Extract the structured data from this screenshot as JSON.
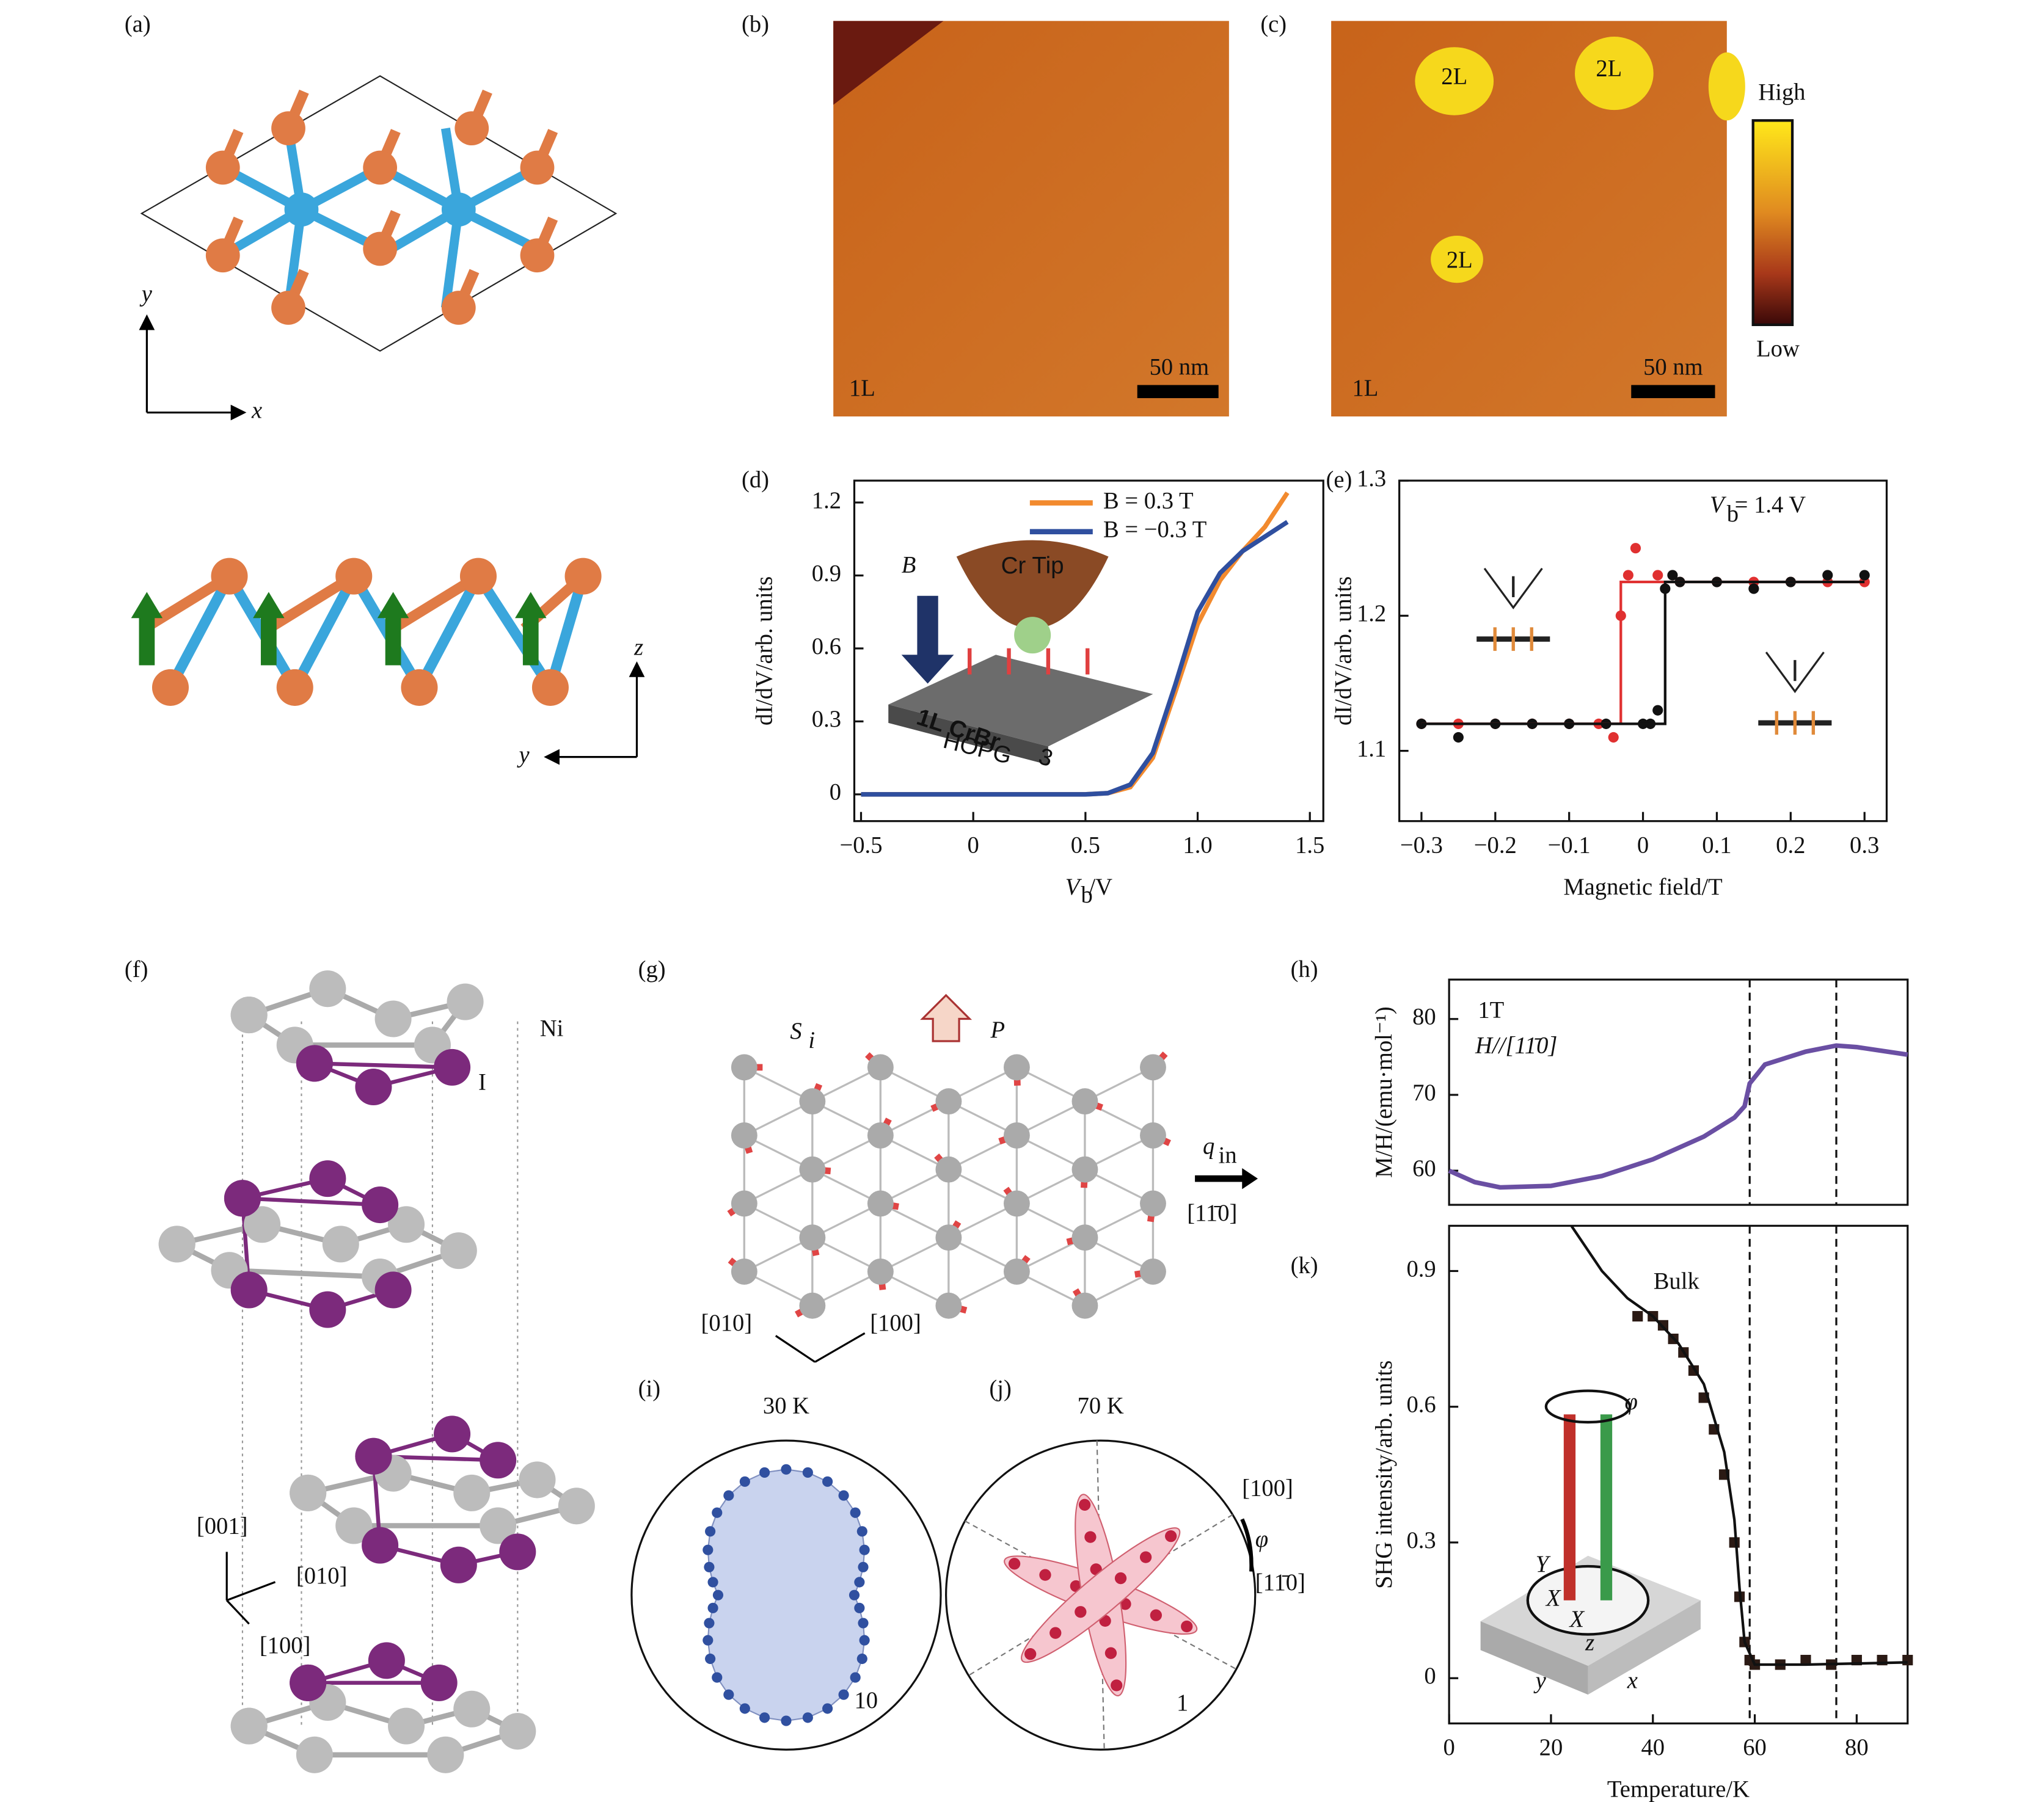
{
  "panel_labels": [
    "(a)",
    "(b)",
    "(c)",
    "(d)",
    "(e)",
    "(f)",
    "(g)",
    "(h)",
    "(i)",
    "(j)",
    "(k)"
  ],
  "panel_a": {
    "axes_top": [
      "y",
      "x"
    ],
    "axes_bottom": [
      "z",
      "y"
    ]
  },
  "panel_b": {
    "layer": "1L",
    "scale": "50 nm"
  },
  "panel_c": {
    "islands": [
      "2L",
      "2L",
      "2L"
    ],
    "layer": "1L",
    "scale": "50 nm",
    "colorbar": [
      "High",
      "Low"
    ]
  },
  "panel_f": {
    "atoms": [
      "Ni",
      "I"
    ],
    "directions": [
      "[001]",
      "[010]",
      "[100]"
    ]
  },
  "panel_g": {
    "spin": "S",
    "spin_sub": "i",
    "polarization": "P",
    "q": "q",
    "q_sub": "in",
    "q_dir": "[11̄0]",
    "axes": [
      "[010]",
      "[100]"
    ]
  },
  "panel_i": {
    "title": "30 K",
    "scale": "10"
  },
  "panel_j": {
    "title": "70 K",
    "scale": "1",
    "angle": "φ",
    "dirs": [
      "[100]",
      "[11̄0]"
    ]
  },
  "chart_data": [
    {
      "type": "line",
      "ylabel": "dI/dV/arb. units",
      "xlabel": {
        "main": "V",
        "sub": "b",
        "rest": "/V"
      },
      "x": [
        -0.5,
        0,
        0.5,
        0.6,
        0.7,
        0.8,
        0.9,
        1.0,
        1.1,
        1.2,
        1.3,
        1.4
      ],
      "series": [
        {
          "name": "B = 0.3 T",
          "color": "#f28a2e",
          "values": [
            0,
            0,
            0,
            0.005,
            0.03,
            0.15,
            0.42,
            0.7,
            0.88,
            1.0,
            1.1,
            1.24
          ]
        },
        {
          "name": "B = −0.3 T",
          "color": "#2f4f9f",
          "values": [
            0,
            0,
            0,
            0.005,
            0.04,
            0.17,
            0.45,
            0.75,
            0.91,
            1.0,
            1.06,
            1.12
          ]
        }
      ],
      "xlim": [
        -0.53,
        1.56
      ],
      "ylim": [
        -0.11,
        1.29
      ],
      "xticks": [
        {
          "value": -0.5,
          "label": "−0.5"
        },
        0,
        0.5,
        {
          "value": 1,
          "label": "1.0"
        },
        1.5
      ],
      "yticks": [
        0,
        0.3,
        0.6,
        0.9,
        1.2
      ],
      "inset": [
        "B",
        "Cr Tip",
        "1L CrBr",
        "3",
        "HOPG"
      ]
    },
    {
      "type": "scatter",
      "ylabel": "dI/dV/arb. units",
      "xlabel": "Magnetic field/T",
      "annotation": {
        "main": "V",
        "sub": "b",
        "rest": " = 1.4 V"
      },
      "series": [
        {
          "color": "#e03030",
          "mode": "markers",
          "x": [
            -0.3,
            -0.25,
            -0.2,
            -0.15,
            -0.1,
            -0.06,
            -0.04,
            -0.03,
            -0.02,
            -0.01,
            0.02,
            0.05,
            0.1,
            0.15,
            0.2,
            0.25,
            0.3
          ],
          "values": [
            1.12,
            1.12,
            1.12,
            1.12,
            1.12,
            1.12,
            1.11,
            1.2,
            1.23,
            1.25,
            1.23,
            1.225,
            1.225,
            1.225,
            1.225,
            1.225,
            1.225
          ]
        },
        {
          "color": "#111111",
          "mode": "markers",
          "x": [
            -0.3,
            -0.25,
            -0.2,
            -0.15,
            -0.1,
            -0.05,
            0,
            0.01,
            0.02,
            0.03,
            0.04,
            0.05,
            0.1,
            0.15,
            0.2,
            0.25,
            0.3
          ],
          "values": [
            1.12,
            1.11,
            1.12,
            1.12,
            1.12,
            1.12,
            1.12,
            1.12,
            1.13,
            1.22,
            1.23,
            1.225,
            1.225,
            1.22,
            1.225,
            1.23,
            1.23
          ]
        },
        {
          "color": "#e03030",
          "mode": "line",
          "x": [
            -0.3,
            -0.03,
            -0.03,
            0.3
          ],
          "values": [
            1.12,
            1.12,
            1.225,
            1.225
          ]
        },
        {
          "color": "#111111",
          "mode": "line",
          "x": [
            -0.3,
            0.03,
            0.03,
            0.3
          ],
          "values": [
            1.12,
            1.12,
            1.225,
            1.225
          ]
        }
      ],
      "xlim": [
        -0.33,
        0.33
      ],
      "ylim": [
        1.048,
        1.3
      ],
      "xticks": [
        {
          "value": -0.3,
          "label": "−0.3"
        },
        {
          "value": -0.2,
          "label": "−0.2"
        },
        {
          "value": -0.1,
          "label": "−0.1"
        },
        0,
        0.1,
        0.2,
        0.3
      ],
      "yticks": [
        1.1,
        1.2,
        1.3
      ]
    },
    {
      "type": "line",
      "ylabel": "M/H/(emu·mol⁻¹)",
      "annotations": [
        "1T",
        "H//[11̄0]"
      ],
      "x": [
        0,
        5,
        10,
        20,
        30,
        40,
        50,
        56,
        58,
        59,
        62,
        70,
        76,
        80,
        90
      ],
      "series": [
        {
          "color": "#6a4fa3",
          "values": [
            60,
            58.5,
            57.8,
            58,
            59.3,
            61.5,
            64.5,
            67,
            68.5,
            71.5,
            74,
            75.7,
            76.5,
            76.3,
            75.3
          ]
        }
      ],
      "xlim": [
        0,
        90
      ],
      "ylim": [
        55.5,
        85.2
      ],
      "yticks": [
        60,
        70,
        80
      ],
      "vlines": [
        59,
        76
      ]
    },
    {
      "type": "scatter",
      "ylabel": "SHG intensity/arb. units",
      "xlabel": "Temperature/K",
      "annotation": "Bulk",
      "inset": [
        "φ",
        "Y",
        "X",
        "X",
        "z",
        "y",
        "x"
      ],
      "series": [
        {
          "color": "#2b1a14",
          "mode": "markers",
          "marker": "square",
          "x": [
            37,
            40,
            42,
            44,
            46,
            48,
            50,
            52,
            54,
            56,
            57,
            58,
            59,
            60,
            65,
            70,
            75,
            80,
            85,
            90
          ],
          "values": [
            0.8,
            0.8,
            0.78,
            0.75,
            0.72,
            0.68,
            0.62,
            0.55,
            0.45,
            0.3,
            0.18,
            0.08,
            0.04,
            0.03,
            0.03,
            0.04,
            0.03,
            0.04,
            0.04,
            0.04
          ]
        },
        {
          "color": "#111111",
          "mode": "line",
          "x": [
            24,
            30,
            35,
            40,
            45,
            50,
            54,
            56,
            57,
            58,
            60,
            70,
            90
          ],
          "values": [
            1.0,
            0.9,
            0.84,
            0.8,
            0.74,
            0.65,
            0.5,
            0.35,
            0.2,
            0.08,
            0.03,
            0.03,
            0.035
          ]
        }
      ],
      "xlim": [
        0,
        90
      ],
      "ylim": [
        -0.1,
        1.0
      ],
      "xticks": [
        0,
        20,
        40,
        60,
        80
      ],
      "yticks": [
        0,
        0.3,
        0.6,
        0.9
      ],
      "vlines": [
        59,
        76
      ]
    }
  ]
}
